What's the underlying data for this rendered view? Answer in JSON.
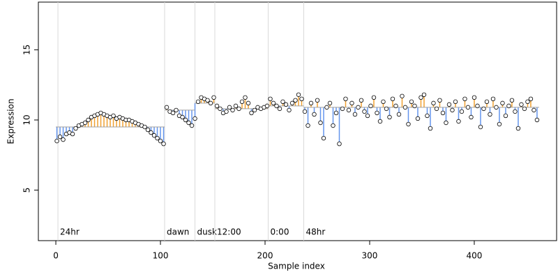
{
  "chart_data": {
    "type": "scatter",
    "x_label": "Sample index",
    "y_label": "Expression",
    "xlim": [
      -16.7,
      478.7
    ],
    "ylim": [
      1.4,
      18.4
    ],
    "xticks": [
      0,
      100,
      200,
      300,
      400
    ],
    "yticks": [
      5,
      10,
      15
    ],
    "point_fill": "#ffffff",
    "point_stroke": "#000000",
    "above_color": "#f0a030",
    "below_color": "#6495ed",
    "fit_color": "#a0a0a0",
    "vline_color": "#d9d9d9",
    "annotation_color": "#a6a6a6",
    "annotation_y": 2.0,
    "annotations": [
      {
        "x": 2,
        "label": "24hr"
      },
      {
        "x": 104,
        "label": "dawn"
      },
      {
        "x": 133,
        "label": "dusk"
      },
      {
        "x": 152,
        "label": "12:00"
      },
      {
        "x": 203,
        "label": "0:00"
      },
      {
        "x": 237,
        "label": "48hr"
      }
    ],
    "fit": [
      {
        "start": 0,
        "end": 104,
        "level": 9.5
      },
      {
        "start": 104,
        "end": 133,
        "level": 10.7
      },
      {
        "start": 133,
        "end": 152,
        "level": 11.2
      },
      {
        "start": 152,
        "end": 203,
        "level": 10.8
      },
      {
        "start": 203,
        "end": 237,
        "level": 11.0
      },
      {
        "start": 237,
        "end": 462,
        "level": 10.9
      }
    ],
    "x": [
      1,
      4,
      7,
      10,
      13,
      16,
      19,
      22,
      25,
      28,
      31,
      34,
      37,
      40,
      43,
      46,
      49,
      52,
      55,
      58,
      61,
      64,
      67,
      70,
      73,
      76,
      79,
      82,
      85,
      88,
      91,
      94,
      97,
      100,
      103,
      106,
      109,
      112,
      115,
      118,
      121,
      124,
      127,
      130,
      133,
      136,
      139,
      142,
      145,
      148,
      151,
      154,
      157,
      160,
      163,
      166,
      169,
      172,
      175,
      178,
      181,
      184,
      187,
      190,
      193,
      196,
      199,
      202,
      205,
      208,
      211,
      214,
      217,
      220,
      223,
      226,
      229,
      232,
      235,
      238,
      241,
      244,
      247,
      250,
      253,
      256,
      259,
      262,
      265,
      268,
      271,
      274,
      277,
      280,
      283,
      286,
      289,
      292,
      295,
      298,
      301,
      304,
      307,
      310,
      313,
      316,
      319,
      322,
      325,
      328,
      331,
      334,
      337,
      340,
      343,
      346,
      349,
      352,
      355,
      358,
      361,
      364,
      367,
      370,
      373,
      376,
      379,
      382,
      385,
      388,
      391,
      394,
      397,
      400,
      403,
      406,
      409,
      412,
      415,
      418,
      421,
      424,
      427,
      430,
      433,
      436,
      439,
      442,
      445,
      448,
      451,
      454,
      457,
      460
    ],
    "values": [
      8.5,
      8.8,
      8.6,
      9.0,
      9.1,
      9.0,
      9.4,
      9.6,
      9.7,
      9.8,
      10.0,
      10.2,
      10.3,
      10.4,
      10.5,
      10.4,
      10.3,
      10.2,
      10.3,
      10.1,
      10.2,
      10.1,
      10.0,
      10.0,
      9.9,
      9.8,
      9.7,
      9.6,
      9.5,
      9.3,
      9.1,
      8.9,
      8.7,
      8.5,
      8.3,
      10.9,
      10.6,
      10.5,
      10.7,
      10.3,
      10.2,
      10.0,
      9.8,
      9.6,
      10.1,
      11.3,
      11.6,
      11.5,
      11.4,
      11.2,
      11.6,
      11.0,
      10.8,
      10.5,
      10.6,
      10.9,
      10.7,
      11.0,
      10.8,
      11.3,
      11.6,
      11.2,
      10.5,
      10.7,
      10.9,
      10.8,
      10.9,
      11.0,
      11.5,
      11.2,
      11.0,
      10.8,
      11.3,
      11.1,
      10.7,
      11.2,
      11.4,
      11.8,
      11.5,
      10.6,
      9.6,
      11.2,
      10.4,
      11.4,
      9.8,
      8.7,
      10.9,
      11.2,
      9.6,
      10.5,
      8.3,
      10.8,
      11.5,
      10.7,
      11.2,
      10.4,
      10.9,
      11.4,
      10.6,
      10.3,
      11.0,
      11.6,
      10.5,
      9.9,
      11.3,
      10.8,
      10.2,
      11.5,
      11.0,
      10.4,
      11.7,
      10.9,
      9.7,
      11.3,
      11.0,
      10.1,
      11.6,
      11.8,
      10.3,
      9.4,
      11.2,
      10.8,
      11.4,
      10.5,
      9.8,
      11.1,
      10.7,
      11.3,
      9.9,
      10.6,
      11.5,
      10.9,
      10.2,
      11.6,
      11.0,
      9.5,
      10.8,
      11.3,
      10.4,
      11.5,
      10.9,
      9.7,
      11.2,
      10.3,
      11.0,
      11.4,
      10.6,
      9.4,
      11.1,
      10.8,
      11.3,
      11.5,
      10.7,
      10.0
    ]
  }
}
